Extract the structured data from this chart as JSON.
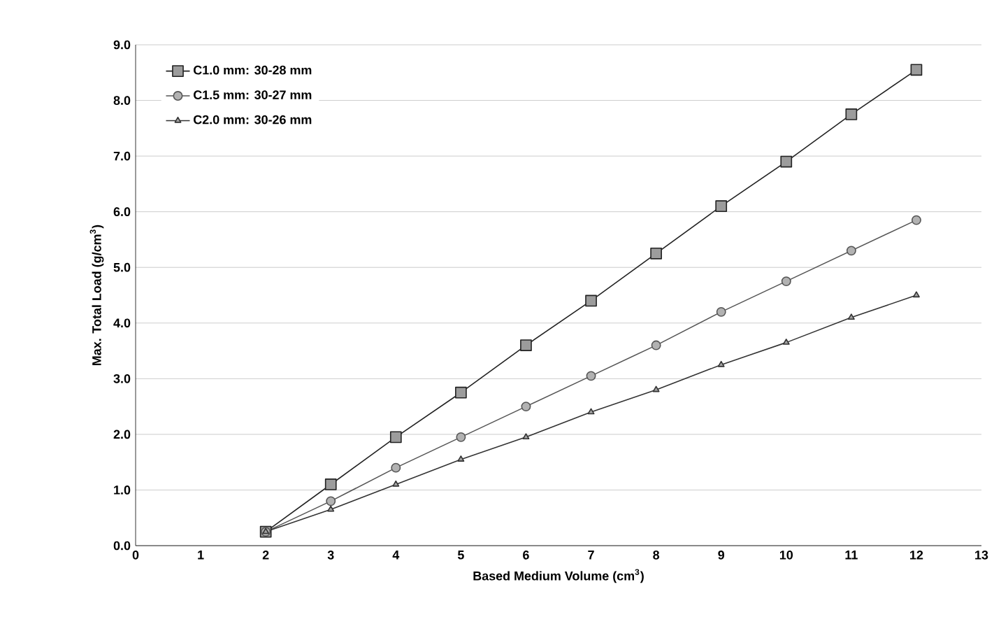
{
  "chart_data": {
    "type": "line",
    "xlabel": "Based Medium Volume (cm$^{3}$)",
    "ylabel": "Max. Total Load (g/cm$^{3}$)",
    "x": [
      2,
      3,
      4,
      5,
      6,
      7,
      8,
      9,
      10,
      11,
      12
    ],
    "series": [
      {
        "name": "C1.0 mm: 30-28 mm",
        "color": "#222222",
        "marker": "square",
        "values": [
          0.25,
          1.1,
          1.95,
          2.75,
          3.6,
          4.4,
          5.25,
          6.1,
          6.9,
          7.75,
          8.55
        ]
      },
      {
        "name": "C1.5 mm: 30-27 mm",
        "color": "#555555",
        "marker": "circle",
        "values": [
          0.25,
          0.8,
          1.4,
          1.95,
          2.5,
          3.05,
          3.6,
          4.2,
          4.75,
          5.3,
          5.85
        ]
      },
      {
        "name": "C2.0 mm: 30-26 mm",
        "color": "#333333",
        "marker": "triangle",
        "values": [
          0.25,
          0.65,
          1.1,
          1.55,
          1.95,
          2.4,
          2.8,
          3.25,
          3.65,
          4.1,
          4.5
        ]
      }
    ],
    "xlim": [
      0,
      13
    ],
    "xticks": [
      0,
      1,
      2,
      3,
      4,
      5,
      6,
      7,
      8,
      9,
      10,
      11,
      12,
      13
    ],
    "ylim": [
      0,
      9
    ],
    "yticks": [
      {
        "value": 0,
        "label": "0.0"
      },
      {
        "value": 1,
        "label": "1.0"
      },
      {
        "value": 2,
        "label": "2.0"
      },
      {
        "value": 3,
        "label": "3.0"
      },
      {
        "value": 4,
        "label": "4.0"
      },
      {
        "value": 5,
        "label": "5.0"
      },
      {
        "value": 6,
        "label": "6.0"
      },
      {
        "value": 7,
        "label": "7.0"
      },
      {
        "value": 8,
        "label": "8.0"
      },
      {
        "value": 9,
        "label": "9.0"
      }
    ],
    "grid": "y",
    "legend": "top left",
    "line_style": "solid"
  }
}
